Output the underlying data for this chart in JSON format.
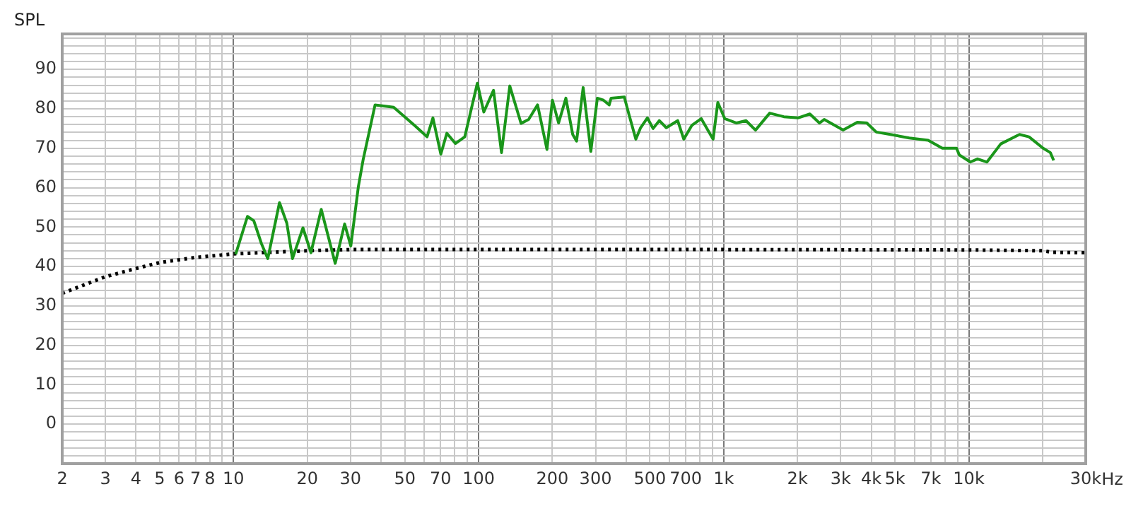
{
  "chart_data": {
    "type": "line",
    "ylabel": "SPL",
    "log": "x",
    "grid": true,
    "legend": false,
    "marker": "none",
    "xlim": [
      2,
      30000
    ],
    "ylim": [
      -10,
      99
    ],
    "xticks": [
      2,
      3,
      4,
      5,
      6,
      7,
      8,
      {
        "value": 9,
        "label": null
      },
      10,
      20,
      30,
      {
        "value": 40,
        "label": null
      },
      50,
      {
        "value": 60,
        "label": null
      },
      70,
      {
        "value": 80,
        "label": null
      },
      {
        "value": 90,
        "label": null
      },
      100,
      200,
      300,
      {
        "value": 400,
        "label": null
      },
      500,
      {
        "value": 600,
        "label": null
      },
      700,
      {
        "value": 800,
        "label": null
      },
      {
        "value": 900,
        "label": null
      },
      {
        "value": 1000,
        "label": "1k"
      },
      {
        "value": 2000,
        "label": "2k"
      },
      {
        "value": 3000,
        "label": "3k"
      },
      {
        "value": 4000,
        "label": "4k"
      },
      {
        "value": 5000,
        "label": "5k"
      },
      {
        "value": 6000,
        "label": null
      },
      {
        "value": 7000,
        "label": "7k"
      },
      {
        "value": 8000,
        "label": null
      },
      {
        "value": 9000,
        "label": null
      },
      {
        "value": 10000,
        "label": "10k"
      },
      {
        "value": 20000,
        "label": null
      },
      {
        "value": 30000,
        "label": "30k"
      }
    ],
    "xlabel": "Hz",
    "yticks": [
      {
        "value": -8,
        "label": null
      },
      {
        "value": -6,
        "label": null
      },
      {
        "value": -4,
        "label": null
      },
      {
        "value": -2,
        "label": null
      },
      0,
      {
        "value": 2,
        "label": null
      },
      {
        "value": 4,
        "label": null
      },
      {
        "value": 6,
        "label": null
      },
      {
        "value": 8,
        "label": null
      },
      10,
      {
        "value": 12,
        "label": null
      },
      {
        "value": 14,
        "label": null
      },
      {
        "value": 16,
        "label": null
      },
      {
        "value": 18,
        "label": null
      },
      20,
      {
        "value": 22,
        "label": null
      },
      {
        "value": 24,
        "label": null
      },
      {
        "value": 26,
        "label": null
      },
      {
        "value": 28,
        "label": null
      },
      30,
      {
        "value": 32,
        "label": null
      },
      {
        "value": 34,
        "label": null
      },
      {
        "value": 36,
        "label": null
      },
      {
        "value": 38,
        "label": null
      },
      40,
      {
        "value": 42,
        "label": null
      },
      {
        "value": 44,
        "label": null
      },
      {
        "value": 46,
        "label": null
      },
      {
        "value": 48,
        "label": null
      },
      50,
      {
        "value": 52,
        "label": null
      },
      {
        "value": 54,
        "label": null
      },
      {
        "value": 56,
        "label": null
      },
      {
        "value": 58,
        "label": null
      },
      60,
      {
        "value": 62,
        "label": null
      },
      {
        "value": 64,
        "label": null
      },
      {
        "value": 66,
        "label": null
      },
      {
        "value": 68,
        "label": null
      },
      70,
      {
        "value": 72,
        "label": null
      },
      {
        "value": 74,
        "label": null
      },
      {
        "value": 76,
        "label": null
      },
      {
        "value": 78,
        "label": null
      },
      80,
      {
        "value": 82,
        "label": null
      },
      {
        "value": 84,
        "label": null
      },
      {
        "value": 86,
        "label": null
      },
      {
        "value": 88,
        "label": null
      },
      90,
      {
        "value": 92,
        "label": null
      },
      {
        "value": 94,
        "label": null
      },
      {
        "value": 96,
        "label": null
      },
      {
        "value": 98,
        "label": null
      }
    ],
    "series": [
      {
        "color": "#1a961a",
        "line_style": "solid",
        "x": [
          10.2,
          11.4,
          12.1,
          13.0,
          13.8,
          15.4,
          16.5,
          17.4,
          19.2,
          20.7,
          22.8,
          26.0,
          28.4,
          30.1,
          32.3,
          33.8,
          37.8,
          45,
          54.8,
          61.6,
          65.1,
          70.1,
          74.2,
          80.4,
          87.8,
          98.8,
          105,
          115,
          124,
          134,
          149,
          160,
          174,
          190,
          200,
          212,
          227,
          242,
          251,
          267,
          287,
          305,
          323,
          341,
          347,
          393,
          410,
          438,
          458,
          488,
          515,
          546,
          583,
          649,
          687,
          741,
          810,
          905,
          946,
          1010,
          1128,
          1233,
          1348,
          1540,
          1758,
          2010,
          2246,
          2457,
          2570,
          3070,
          3509,
          3834,
          4193,
          4788,
          5716,
          6826,
          7800,
          8910,
          9145,
          10150,
          10850,
          11860,
          13500,
          16100,
          17600,
          20100,
          21500,
          22200
        ],
        "values": [
          43.1,
          52.7,
          51.6,
          45.8,
          42,
          56.2,
          51,
          42,
          49.8,
          43.5,
          54.5,
          40.8,
          50.8,
          45.2,
          60.2,
          67.1,
          81,
          80.4,
          75.8,
          72.9,
          77.7,
          68.5,
          73.8,
          71.2,
          72.9,
          86.5,
          79.2,
          84.7,
          68.9,
          85.8,
          76.3,
          77.3,
          81,
          69.7,
          82.2,
          76.4,
          82.7,
          73.5,
          71.8,
          85.4,
          69.2,
          82.7,
          82.2,
          81,
          82.7,
          83,
          78.7,
          72.3,
          75.2,
          77.7,
          75,
          77,
          75.2,
          77,
          72.3,
          75.8,
          77.5,
          72.3,
          81.6,
          77.5,
          76.4,
          77,
          74.6,
          78.9,
          78,
          77.7,
          78.7,
          76.4,
          77.3,
          74.6,
          76.6,
          76.4,
          74.1,
          73.5,
          72.6,
          72,
          70,
          70,
          68.3,
          66.5,
          67.3,
          66.5,
          71.1,
          73.5,
          72.9,
          70,
          68.9,
          66.9
        ]
      },
      {
        "color": "#000000",
        "line_style": "dotted",
        "x": [
          2,
          3,
          4,
          5,
          7,
          10,
          20,
          30,
          100,
          1000,
          10000,
          20000,
          22000,
          30000
        ],
        "values": [
          33.2,
          37.4,
          39.5,
          41,
          42.3,
          43.2,
          44,
          44.3,
          44.3,
          44.3,
          44.2,
          44,
          43.6,
          43.5
        ]
      }
    ]
  }
}
